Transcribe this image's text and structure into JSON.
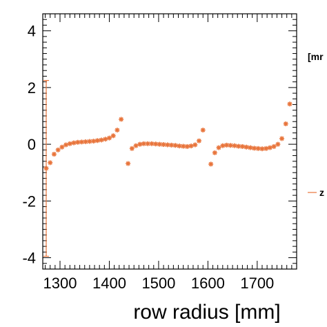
{
  "chart_data": {
    "type": "scatter",
    "title": "",
    "xlabel": "row radius [mm]",
    "ylabel": "",
    "xlim": [
      1265,
      1780
    ],
    "ylim": [
      -4.4,
      4.6
    ],
    "x_ticks": [
      1300,
      1400,
      1500,
      1600,
      1700
    ],
    "y_ticks": [
      -4,
      -2,
      0,
      2,
      4
    ],
    "grid": false,
    "legend_position": "right (clipped)",
    "marker_color": "#e8743b",
    "partial_text": {
      "unit_label": "[mr",
      "legend_label": "z"
    },
    "series": [
      {
        "x": [
          1272,
          1280,
          1288,
          1296,
          1304,
          1312,
          1320,
          1328,
          1336,
          1344,
          1352,
          1360,
          1368,
          1376,
          1384,
          1392,
          1400,
          1408,
          1416,
          1424
        ],
        "y": [
          -0.85,
          -0.65,
          -0.35,
          -0.2,
          -0.1,
          -0.02,
          0.02,
          0.05,
          0.07,
          0.08,
          0.09,
          0.1,
          0.11,
          0.13,
          0.15,
          0.18,
          0.22,
          0.3,
          0.5,
          0.88
        ],
        "error": [
          3.1,
          0,
          0,
          0,
          0,
          0,
          0,
          0,
          0,
          0,
          0,
          0,
          0,
          0,
          0,
          0,
          0,
          0,
          0,
          0
        ]
      },
      {
        "x": [
          1438,
          1446,
          1454,
          1462,
          1470,
          1478,
          1486,
          1494,
          1502,
          1510,
          1518,
          1526,
          1534,
          1542,
          1550,
          1558,
          1566,
          1574,
          1582,
          1590
        ],
        "y": [
          -0.68,
          -0.15,
          -0.05,
          0.0,
          0.02,
          0.02,
          0.02,
          0.01,
          0.0,
          -0.01,
          -0.02,
          -0.03,
          -0.04,
          -0.06,
          -0.07,
          -0.08,
          -0.06,
          -0.02,
          0.12,
          0.5
        ],
        "error": [
          0,
          0,
          0,
          0,
          0,
          0,
          0,
          0,
          0,
          0,
          0,
          0,
          0,
          0,
          0,
          0,
          0,
          0,
          0,
          0
        ]
      },
      {
        "x": [
          1606,
          1614,
          1622,
          1630,
          1638,
          1646,
          1654,
          1662,
          1670,
          1678,
          1686,
          1694,
          1702,
          1710,
          1718,
          1726,
          1734,
          1742,
          1750,
          1758,
          1766
        ],
        "y": [
          -0.7,
          -0.3,
          -0.12,
          -0.05,
          -0.03,
          -0.04,
          -0.05,
          -0.07,
          -0.08,
          -0.1,
          -0.12,
          -0.14,
          -0.15,
          -0.16,
          -0.15,
          -0.12,
          -0.08,
          0.0,
          0.2,
          0.72,
          1.42
        ],
        "error": [
          0,
          0,
          0,
          0,
          0,
          0,
          0,
          0,
          0,
          0,
          0,
          0,
          0,
          0,
          0,
          0,
          0,
          0,
          0,
          0,
          0
        ]
      }
    ]
  }
}
